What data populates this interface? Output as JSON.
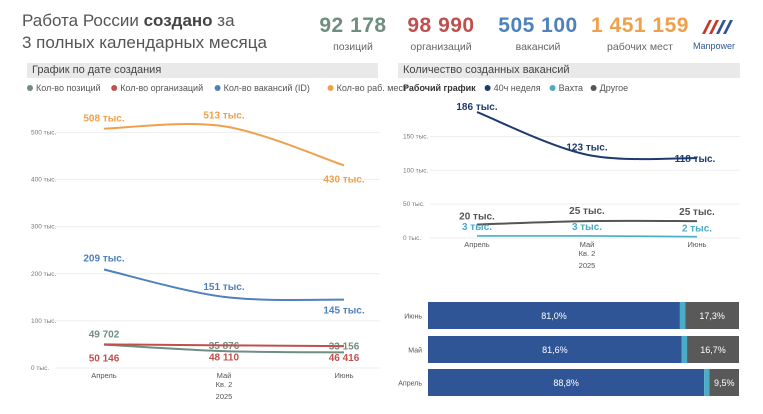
{
  "header": {
    "title_prefix": "Работа России ",
    "title_bold": "создано",
    "title_suffix": " за",
    "title_line2": "3 полных календарных месяца",
    "logo_text": "Manpower"
  },
  "kpis": [
    {
      "value": "92 178",
      "label": "позиций",
      "color": "#6e8e80"
    },
    {
      "value": "98 990",
      "label": "организаций",
      "color": "#c0504d"
    },
    {
      "value": "505 100",
      "label": "вакансий",
      "color": "#4f81bd"
    },
    {
      "value": "1 451 159",
      "label": "рабочих мест",
      "color": "#f0a04b"
    }
  ],
  "left_panel": {
    "title": "График по дате создания"
  },
  "right_panel": {
    "title": "Количество созданных вакансий"
  },
  "chart_data": [
    {
      "type": "line",
      "title": "График по дате создания",
      "legend": [
        "Кол-во позиций",
        "Кол-во организаций",
        "Кол-во вакансий (ID)",
        "Кол-во раб. мест"
      ],
      "legend_placement": "top",
      "categories": [
        "Апрель",
        "Май",
        "Июнь"
      ],
      "x_group_labels": [
        "Кв. 2",
        "2025"
      ],
      "y_ticks": [
        "0 тыс.",
        "100 тыс.",
        "200 тыс.",
        "300 тыс.",
        "400 тыс.",
        "500 тыс."
      ],
      "ylim": [
        0,
        520
      ],
      "grid": true,
      "series": [
        {
          "name": "Кол-во раб. мест",
          "color": "#f0a04b",
          "values": [
            508,
            513,
            430
          ],
          "labels": [
            "508 тыс.",
            "513 тыс.",
            "430 тыс."
          ]
        },
        {
          "name": "Кол-во вакансий (ID)",
          "color": "#4f81bd",
          "values": [
            209,
            151,
            145
          ],
          "labels": [
            "209 тыс.",
            "151 тыс.",
            "145 тыс."
          ]
        },
        {
          "name": "Кол-во позиций",
          "color": "#6e8e80",
          "values": [
            49.702,
            35.876,
            33.156
          ],
          "labels": [
            "49 702",
            "35 876",
            "33 156"
          ]
        },
        {
          "name": "Кол-во организаций",
          "color": "#c0504d",
          "values": [
            50.146,
            48.11,
            46.416
          ],
          "labels": [
            "50 146",
            "48 110",
            "46 416"
          ]
        }
      ]
    },
    {
      "type": "line",
      "title": "Количество созданных вакансий",
      "legend_title": "Рабочий график",
      "legend": [
        "40ч неделя",
        "Вахта",
        "Другое"
      ],
      "legend_placement": "top",
      "categories": [
        "Апрель",
        "Май",
        "Июнь"
      ],
      "x_group_labels": [
        "Кв. 2",
        "2025"
      ],
      "y_ticks": [
        "0 тыс.",
        "50 тыс.",
        "100 тыс.",
        "150 тыс."
      ],
      "ylim": [
        0,
        195
      ],
      "grid": true,
      "series": [
        {
          "name": "40ч неделя",
          "color": "#1f3b6e",
          "values": [
            186,
            123,
            118
          ],
          "labels": [
            "186 тыс.",
            "123 тыс.",
            "118 тыс."
          ]
        },
        {
          "name": "Другое",
          "color": "#555555",
          "values": [
            20,
            25,
            25
          ],
          "labels": [
            "20 тыс.",
            "25 тыс.",
            "25 тыс."
          ]
        },
        {
          "name": "Вахта",
          "color": "#4bacc6",
          "values": [
            3,
            3,
            2
          ],
          "labels": [
            "3 тыс.",
            "3 тыс.",
            "2 тыс."
          ]
        }
      ]
    },
    {
      "type": "bar",
      "orientation": "horizontal",
      "stacked": true,
      "percent": true,
      "categories": [
        "Июнь",
        "Май",
        "Апрель"
      ],
      "series": [
        {
          "name": "40ч неделя",
          "color": "#2f5597",
          "values": [
            81.0,
            81.6,
            88.8
          ],
          "labels": [
            "81,0%",
            "81,6%",
            "88,8%"
          ]
        },
        {
          "name": "Вахта",
          "color": "#4bacc6",
          "values": [
            1.7,
            1.7,
            1.7
          ]
        },
        {
          "name": "Другое",
          "color": "#595959",
          "values": [
            17.3,
            16.7,
            9.5
          ],
          "labels": [
            "17,3%",
            "16,7%",
            "9,5%"
          ]
        }
      ]
    }
  ]
}
